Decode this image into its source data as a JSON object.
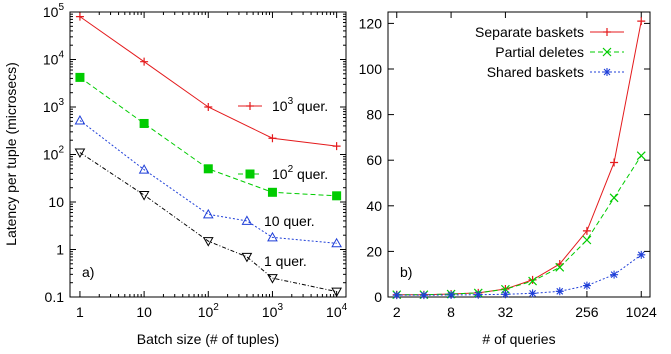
{
  "chart_data": [
    {
      "type": "line",
      "panel_label": "a)",
      "xlabel": "Batch size (# of tuples)",
      "ylabel": "Latency per tuple (microsecs)",
      "xscale": "log",
      "yscale": "log",
      "xlim": [
        0.7,
        14000
      ],
      "ylim": [
        0.1,
        100000
      ],
      "x_ticks": [
        {
          "base": "1",
          "exp": ""
        },
        {
          "base": "10",
          "exp": ""
        },
        {
          "base": "10",
          "exp": "2"
        },
        {
          "base": "10",
          "exp": "3"
        },
        {
          "base": "10",
          "exp": "4"
        }
      ],
      "y_ticks": [
        {
          "base": "0.1",
          "exp": ""
        },
        {
          "base": "1",
          "exp": ""
        },
        {
          "base": "10",
          "exp": ""
        },
        {
          "base": "10",
          "exp": "2"
        },
        {
          "base": "10",
          "exp": "3"
        },
        {
          "base": "10",
          "exp": "4"
        },
        {
          "base": "10",
          "exp": "5"
        }
      ],
      "series": [
        {
          "label_base": "10",
          "label_exp": "3",
          "label_rest": " quer.",
          "color": "#e41a1c",
          "dash": "solid",
          "marker": "plus",
          "x": [
            1,
            10,
            100,
            1000,
            10000
          ],
          "y": [
            80000,
            9000,
            1000,
            220,
            150
          ]
        },
        {
          "label_base": "10",
          "label_exp": "2",
          "label_rest": " quer.",
          "color": "#00cc00",
          "dash": "dash",
          "marker": "square",
          "x": [
            1,
            10,
            100,
            1000,
            10000
          ],
          "y": [
            4200,
            450,
            50,
            16,
            13.5
          ]
        },
        {
          "label_base": "10 quer.",
          "label_exp": "",
          "label_rest": "",
          "color": "#1f3fd8",
          "dash": "dot",
          "marker": "triangle",
          "x": [
            1,
            10,
            100,
            400,
            1000,
            10000
          ],
          "y": [
            520,
            48,
            5.5,
            4,
            1.8,
            1.35
          ]
        },
        {
          "label_base": "1 quer.",
          "label_exp": "",
          "label_rest": "",
          "color": "#000000",
          "dash": "dashdot",
          "marker": "triangle-down",
          "x": [
            1,
            10,
            100,
            400,
            1000,
            10000
          ],
          "y": [
            110,
            14,
            1.5,
            0.7,
            0.25,
            0.13
          ]
        }
      ]
    },
    {
      "type": "line",
      "panel_label": "b)",
      "xlabel": "# of queries",
      "ylabel": "",
      "xscale": "log2",
      "xlim": [
        1.6,
        1280
      ],
      "ylim": [
        0,
        125
      ],
      "x_tick_labels": [
        "2",
        "8",
        "32",
        "256",
        "1024"
      ],
      "x_tick_values": [
        2,
        8,
        32,
        256,
        1024
      ],
      "y_tick_values": [
        0,
        20,
        40,
        60,
        80,
        100,
        120
      ],
      "series": [
        {
          "name": "Separate baskets",
          "color": "#e41a1c",
          "dash": "solid",
          "marker": "plus",
          "x": [
            2,
            4,
            8,
            16,
            32,
            64,
            128,
            256,
            512,
            1024
          ],
          "y": [
            1,
            1,
            1.3,
            1.8,
            3.5,
            7.5,
            14.5,
            29,
            59,
            121
          ]
        },
        {
          "name": "Partial deletes",
          "color": "#00cc00",
          "dash": "dash",
          "marker": "x",
          "x": [
            2,
            4,
            8,
            16,
            32,
            64,
            128,
            256,
            512,
            1024
          ],
          "y": [
            1,
            1,
            1.3,
            1.8,
            3.4,
            7,
            13,
            25,
            43.5,
            62
          ]
        },
        {
          "name": "Shared baskets",
          "color": "#1f3fd8",
          "dash": "dot",
          "marker": "star",
          "x": [
            2,
            4,
            8,
            16,
            32,
            64,
            128,
            256,
            512,
            1024
          ],
          "y": [
            0.8,
            0.8,
            0.9,
            1,
            1.2,
            1.6,
            2.5,
            5,
            9.8,
            18.5
          ]
        }
      ]
    }
  ]
}
